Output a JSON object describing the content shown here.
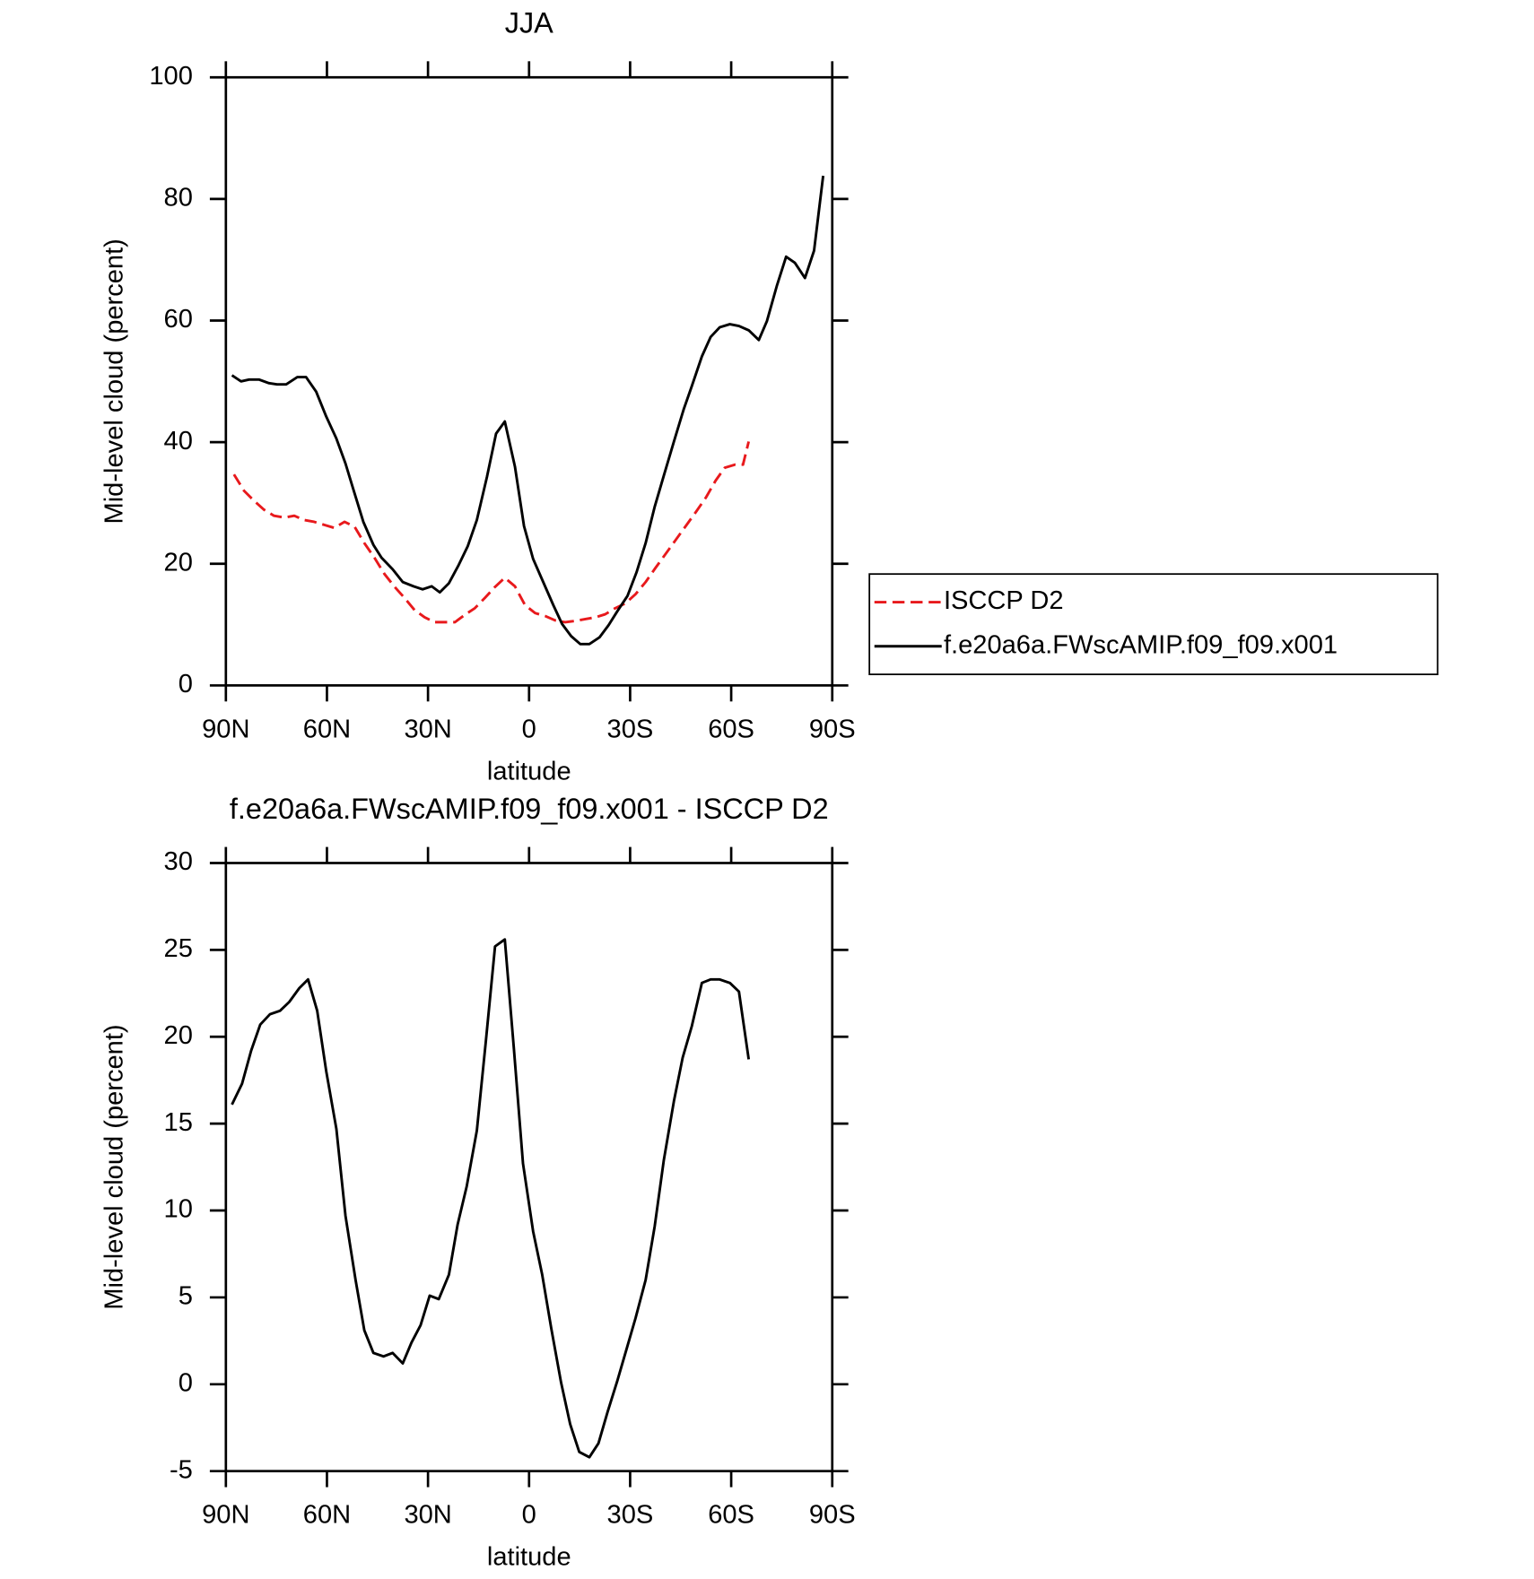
{
  "chart_data": [
    {
      "type": "line",
      "title": "JJA",
      "xlabel": "latitude",
      "ylabel": "Mid-level cloud (percent)",
      "xlim": [
        90,
        -90
      ],
      "xticks": [
        {
          "value": 90,
          "label": "90N"
        },
        {
          "value": 60,
          "label": "60N"
        },
        {
          "value": 30,
          "label": "30N"
        },
        0,
        {
          "value": -30,
          "label": "30S"
        },
        {
          "value": -60,
          "label": "60S"
        },
        {
          "value": -90,
          "label": "90S"
        }
      ],
      "ylim": [
        0,
        100
      ],
      "yticks": [
        0,
        20,
        40,
        60,
        80,
        100
      ],
      "legend": "right",
      "series": [
        {
          "name": "ISCCP D2",
          "color": "#e8191c",
          "dashed": true,
          "x": [
            87.6,
            84.6,
            81.7,
            78.7,
            75.7,
            72.7,
            69.7,
            66.8,
            63.8,
            60.8,
            57.8,
            54.8,
            51.8,
            48.9,
            45.9,
            42.9,
            39.9,
            37.0,
            34.0,
            31.0,
            28.0,
            25.0,
            22.0,
            19.1,
            16.1,
            13.1,
            10.1,
            7.2,
            4.2,
            1.2,
            -1.8,
            -4.8,
            -7.7,
            -10.7,
            -13.7,
            -16.7,
            -19.7,
            -22.6,
            -25.6,
            -28.6,
            -31.6,
            -34.6,
            -37.5,
            -40.5,
            -43.5,
            -46.5,
            -49.5,
            -52.5,
            -55.4,
            -58.1,
            -61.1,
            -63.5,
            -65.2
          ],
          "values": [
            34.7,
            32.0,
            30.4,
            28.9,
            27.9,
            27.6,
            27.9,
            27.2,
            26.9,
            26.4,
            25.9,
            26.9,
            26.1,
            23.4,
            21.0,
            18.3,
            16.2,
            14.4,
            12.4,
            11.2,
            10.4,
            10.4,
            10.4,
            11.6,
            12.7,
            14.4,
            16.2,
            17.7,
            16.3,
            13.2,
            11.9,
            11.4,
            10.7,
            10.4,
            10.6,
            10.9,
            11.2,
            11.7,
            12.7,
            13.5,
            15.0,
            17.0,
            19.3,
            21.6,
            23.9,
            26.2,
            28.5,
            30.9,
            33.7,
            35.8,
            36.3,
            36.3,
            40.1
          ]
        },
        {
          "name": "f.e20a6a.FWscAMIP.f09_f09.x001",
          "color": "#000000",
          "dashed": false,
          "x": [
            88.2,
            85.5,
            83.1,
            80.2,
            77.2,
            74.8,
            72.1,
            68.8,
            66.2,
            63.2,
            60.2,
            57.2,
            54.5,
            52.2,
            49.2,
            46.2,
            43.8,
            40.5,
            37.5,
            34.3,
            31.6,
            28.9,
            26.5,
            23.8,
            20.9,
            18.2,
            15.5,
            12.5,
            9.8,
            7.2,
            4.2,
            1.5,
            -1.2,
            -4.2,
            -7.2,
            -9.8,
            -12.5,
            -15.2,
            -17.9,
            -20.9,
            -23.6,
            -26.2,
            -29.2,
            -31.9,
            -34.6,
            -37.3,
            -40.0,
            -43.0,
            -45.9,
            -48.3,
            -51.3,
            -53.9,
            -56.6,
            -59.6,
            -62.3,
            -65.2,
            -68.2,
            -70.6,
            -73.6,
            -76.3,
            -78.9,
            -81.9,
            -84.6,
            -87.3
          ],
          "values": [
            51.0,
            50.0,
            50.3,
            50.3,
            49.7,
            49.5,
            49.5,
            50.7,
            50.7,
            48.3,
            44.2,
            40.6,
            36.5,
            32.3,
            26.9,
            23.1,
            21.0,
            19.1,
            17.0,
            16.3,
            15.8,
            16.3,
            15.3,
            16.8,
            19.8,
            22.9,
            27.2,
            34.3,
            41.4,
            43.4,
            36.0,
            26.2,
            20.8,
            17.0,
            13.2,
            10.1,
            8.1,
            6.8,
            6.8,
            7.9,
            9.9,
            12.2,
            14.7,
            18.6,
            23.4,
            29.4,
            34.5,
            40.1,
            45.4,
            49.2,
            54.1,
            57.3,
            58.9,
            59.4,
            59.1,
            58.4,
            56.8,
            59.9,
            65.8,
            70.5,
            69.5,
            67.0,
            71.5,
            83.8
          ]
        }
      ]
    },
    {
      "type": "line",
      "title": "f.e20a6a.FWscAMIP.f09_f09.x001 - ISCCP D2",
      "xlabel": "latitude",
      "ylabel": "Mid-level cloud (percent)",
      "xlim": [
        90,
        -90
      ],
      "xticks": [
        {
          "value": 90,
          "label": "90N"
        },
        {
          "value": 60,
          "label": "60N"
        },
        {
          "value": 30,
          "label": "30N"
        },
        0,
        {
          "value": -30,
          "label": "30S"
        },
        {
          "value": -60,
          "label": "60S"
        },
        {
          "value": -90,
          "label": "90S"
        }
      ],
      "ylim": [
        -5,
        30
      ],
      "yticks": [
        -5,
        0,
        5,
        10,
        15,
        20,
        25,
        30
      ],
      "color": "#000000",
      "x": [
        88.2,
        85.2,
        82.5,
        79.8,
        76.9,
        73.9,
        71.2,
        68.2,
        65.6,
        62.9,
        60.2,
        57.2,
        54.5,
        51.5,
        48.9,
        46.2,
        43.2,
        40.5,
        37.5,
        34.9,
        32.2,
        29.5,
        26.8,
        23.8,
        21.2,
        18.5,
        15.5,
        12.8,
        10.1,
        7.2,
        4.5,
        1.8,
        -1.2,
        -3.9,
        -6.6,
        -9.5,
        -12.2,
        -14.9,
        -17.9,
        -20.6,
        -23.3,
        -26.2,
        -28.9,
        -31.6,
        -34.6,
        -37.3,
        -40.0,
        -43.0,
        -45.6,
        -48.3,
        -51.3,
        -53.9,
        -56.6,
        -59.6,
        -62.3,
        -65.2
      ],
      "values": [
        16.1,
        17.3,
        19.2,
        20.7,
        21.3,
        21.5,
        22.0,
        22.8,
        23.3,
        21.5,
        18.0,
        14.7,
        9.7,
        6.0,
        3.1,
        1.8,
        1.6,
        1.8,
        1.2,
        2.4,
        3.4,
        5.1,
        4.9,
        6.3,
        9.2,
        11.4,
        14.6,
        19.8,
        25.2,
        25.6,
        19.3,
        12.7,
        8.8,
        6.3,
        3.2,
        0.1,
        -2.3,
        -3.9,
        -4.2,
        -3.4,
        -1.6,
        0.2,
        2.0,
        3.8,
        6.0,
        9.1,
        12.9,
        16.3,
        18.8,
        20.6,
        23.1,
        23.3,
        23.3,
        23.1,
        22.6,
        18.7
      ]
    }
  ]
}
